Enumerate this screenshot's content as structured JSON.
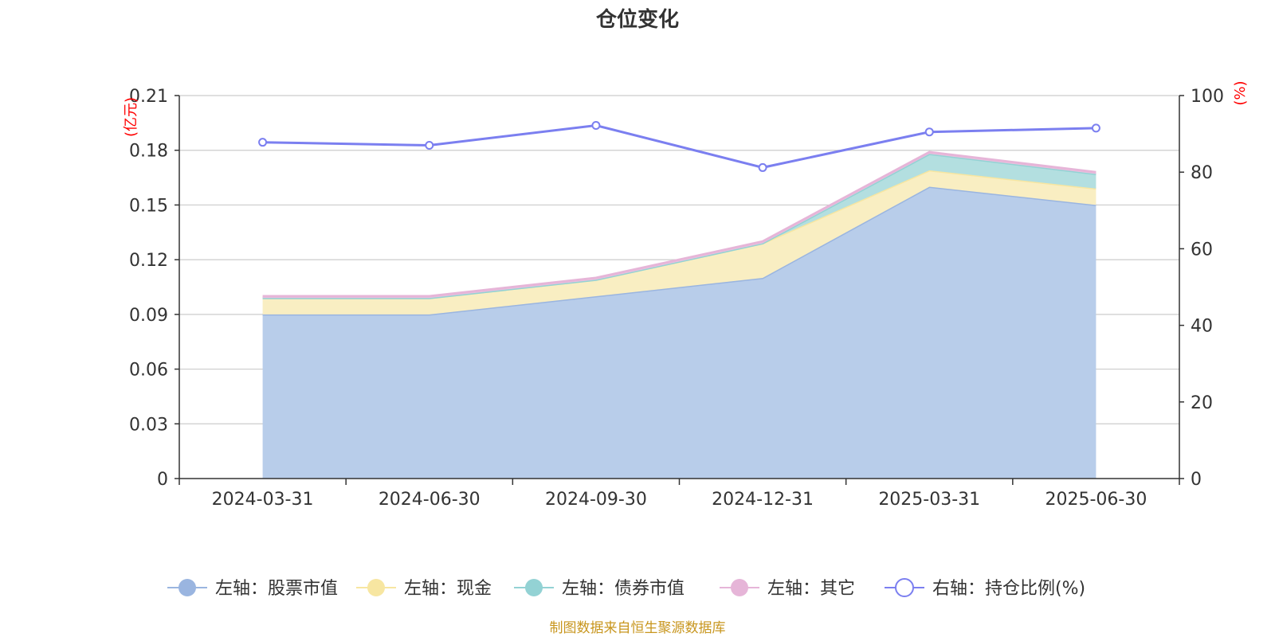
{
  "chart_data": {
    "type": "area",
    "title": "仓位变化",
    "categories": [
      "2024-03-31",
      "2024-06-30",
      "2024-09-30",
      "2024-12-31",
      "2025-03-31",
      "2025-06-30"
    ],
    "left_axis": {
      "unit": "(亿元)",
      "ylim": [
        0,
        0.21
      ],
      "ticks": [
        "0",
        "0.03",
        "0.06",
        "0.09",
        "0.12",
        "0.15",
        "0.18",
        "0.21"
      ]
    },
    "right_axis": {
      "unit": "(%)",
      "ylim": [
        0,
        100
      ],
      "ticks": [
        "0",
        "20",
        "40",
        "60",
        "80",
        "100"
      ]
    },
    "stacked_series": [
      {
        "name": "左轴：股票市值",
        "color": "#9ab5e0",
        "fill": "#b8cdea",
        "values": [
          0.09,
          0.09,
          0.1,
          0.11,
          0.16,
          0.15
        ]
      },
      {
        "name": "左轴：现金",
        "color": "#f7e6a1",
        "fill": "#f9eec2",
        "values": [
          0.009,
          0.009,
          0.009,
          0.019,
          0.009,
          0.009
        ]
      },
      {
        "name": "左轴：债券市值",
        "color": "#93d2d4",
        "fill": "#b3dfe0",
        "values": [
          0.0,
          0.0,
          0.0,
          0.0,
          0.009,
          0.008
        ]
      },
      {
        "name": "左轴：其它",
        "color": "#e6b5d8",
        "fill": "#ecc4e0",
        "values": [
          0.001,
          0.001,
          0.001,
          0.001,
          0.001,
          0.001
        ]
      }
    ],
    "line_series": {
      "name": "右轴：持仓比例(%)",
      "color": "#7b7ff0",
      "values": [
        87.8,
        87.0,
        92.2,
        81.2,
        90.5,
        91.5
      ]
    },
    "grid": true,
    "legend_position": "bottom"
  },
  "source_note": "制图数据来自恒生聚源数据库"
}
